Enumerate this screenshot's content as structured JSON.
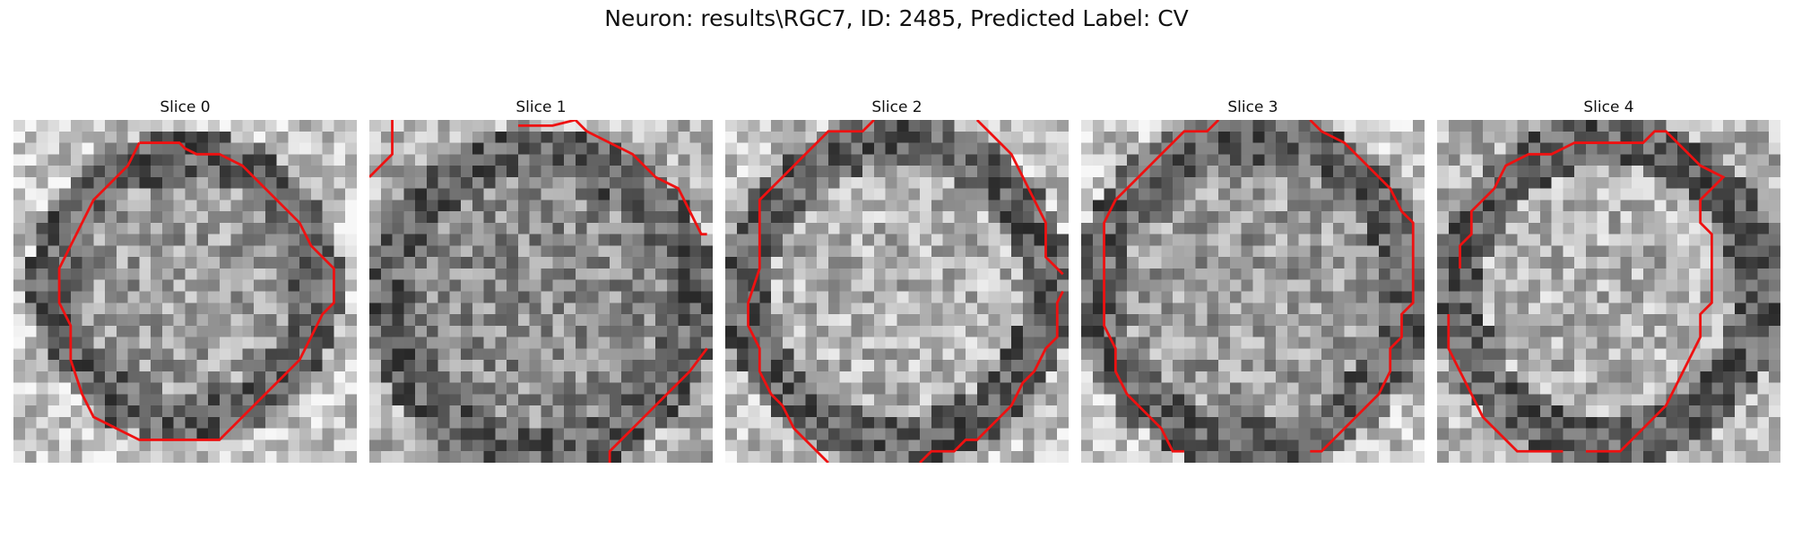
{
  "figure": {
    "title": "Neuron: results\\RGC7, ID: 2485, Predicted Label: CV"
  },
  "panels": [
    {
      "title": "Slice 0"
    },
    {
      "title": "Slice 1"
    },
    {
      "title": "Slice 2"
    },
    {
      "title": "Slice 3"
    },
    {
      "title": "Slice 4"
    }
  ],
  "colors": {
    "contour": "#ee1111",
    "background": "#ffffff"
  }
}
